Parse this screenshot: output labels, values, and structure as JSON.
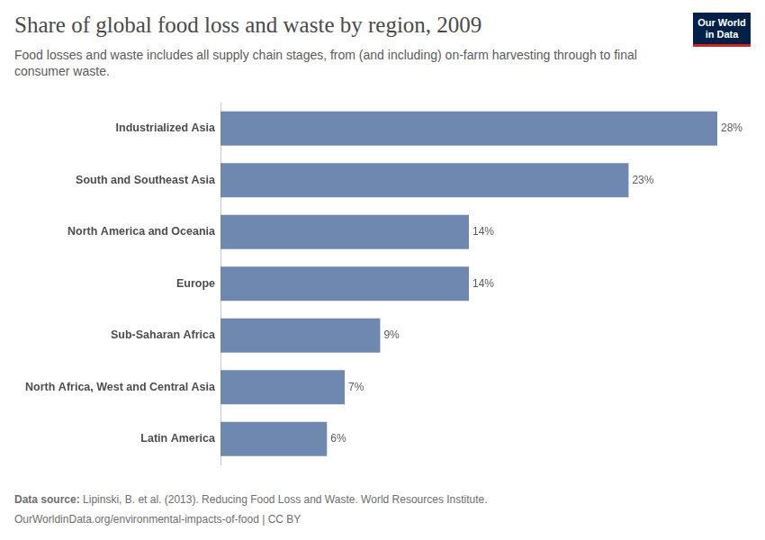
{
  "chart_data": {
    "type": "bar",
    "title": "Share of global food loss and waste by region, 2009",
    "subtitle": "Food losses and waste includes all supply chain stages, from (and including) on-farm harvesting through to final consumer waste.",
    "logo": "Our World in Data",
    "source_label": "Data source:",
    "source": "Lipinski, B. et al. (2013). Reducing Food Loss and Waste. World Resources Institute.",
    "footer": "OurWorldinData.org/environmental-impacts-of-food | CC BY",
    "categories": [
      "Industrialized Asia",
      "South and Southeast Asia",
      "North America and Oceania",
      "Europe",
      "Sub-Saharan Africa",
      "North Africa, West and Central Asia",
      "Latin America"
    ],
    "values": [
      28,
      23,
      14,
      14,
      9,
      7,
      6
    ],
    "value_labels": [
      "28%",
      "23%",
      "14%",
      "14%",
      "9%",
      "7%",
      "6%"
    ],
    "color": "#6f88b0",
    "orientation": "horizontal",
    "xlim": [
      0,
      28
    ],
    "grid": false,
    "data_labels": true,
    "tick_labels": "y"
  }
}
